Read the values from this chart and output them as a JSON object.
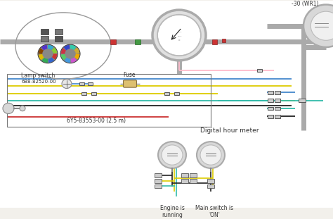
{
  "bg_color": "#f2f0eb",
  "wire_colors": {
    "blue": "#4488cc",
    "yellow": "#ddcc00",
    "black": "#222222",
    "green": "#44aa66",
    "red": "#cc3333",
    "pink": "#ffbbcc",
    "teal": "#33bbaa",
    "gray": "#999999",
    "white": "#eeeeee"
  },
  "labels": {
    "lamp_switch": "Lamp switch",
    "part1": "688-82520-00",
    "fuse": "Fuse",
    "part2": "6Y5-83553-00 (2.5 m)",
    "digital_hour": "Digital hour meter",
    "engine_running": "Engine is\nrunning",
    "main_switch": "Main switch is\n'ON'",
    "top_label": "-30 (WR1)"
  },
  "font_size_small": 5.5,
  "font_size_medium": 6.5,
  "font_size_large": 8
}
